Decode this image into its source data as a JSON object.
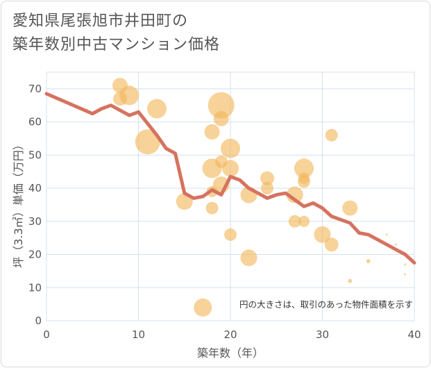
{
  "chart_data": {
    "type": "scatter",
    "title_lines": [
      "愛知県尾張旭市井田町の",
      "築年数別中古マンション価格"
    ],
    "xlabel": "築年数（年）",
    "ylabel": "坪（3.3㎡）単価（万円）",
    "xlim": [
      0,
      40
    ],
    "ylim": [
      0,
      75
    ],
    "xticks": [
      0,
      10,
      20,
      30,
      40
    ],
    "yticks": [
      0,
      10,
      20,
      30,
      40,
      50,
      60,
      70
    ],
    "grid": true,
    "annotation": "円の大きさは、取引のあった物件面積を示す",
    "colors": {
      "bubble": "#f2b75b",
      "line": "#d5735f",
      "grid": "#d4e1ec"
    },
    "series": [
      {
        "type": "bubble",
        "points": [
          {
            "x": 8,
            "y": 71,
            "size": 11
          },
          {
            "x": 8,
            "y": 67,
            "size": 10
          },
          {
            "x": 9,
            "y": 68,
            "size": 14
          },
          {
            "x": 11,
            "y": 54,
            "size": 18
          },
          {
            "x": 12,
            "y": 64,
            "size": 14
          },
          {
            "x": 15,
            "y": 36,
            "size": 12
          },
          {
            "x": 17,
            "y": 4,
            "size": 13
          },
          {
            "x": 18,
            "y": 57,
            "size": 11
          },
          {
            "x": 18,
            "y": 46,
            "size": 14
          },
          {
            "x": 18,
            "y": 39,
            "size": 8
          },
          {
            "x": 18,
            "y": 34,
            "size": 9
          },
          {
            "x": 19,
            "y": 65,
            "size": 19
          },
          {
            "x": 19,
            "y": 61,
            "size": 11
          },
          {
            "x": 19,
            "y": 48,
            "size": 9
          },
          {
            "x": 19,
            "y": 41,
            "size": 12
          },
          {
            "x": 20,
            "y": 52,
            "size": 14
          },
          {
            "x": 20,
            "y": 46,
            "size": 12
          },
          {
            "x": 20,
            "y": 26,
            "size": 9
          },
          {
            "x": 22,
            "y": 38,
            "size": 12
          },
          {
            "x": 22,
            "y": 19,
            "size": 12
          },
          {
            "x": 24,
            "y": 43,
            "size": 10
          },
          {
            "x": 24,
            "y": 40,
            "size": 9
          },
          {
            "x": 27,
            "y": 38,
            "size": 12
          },
          {
            "x": 27,
            "y": 30,
            "size": 9
          },
          {
            "x": 28,
            "y": 46,
            "size": 14
          },
          {
            "x": 28,
            "y": 43,
            "size": 8
          },
          {
            "x": 28,
            "y": 42,
            "size": 9
          },
          {
            "x": 28,
            "y": 30,
            "size": 8
          },
          {
            "x": 30,
            "y": 26,
            "size": 12
          },
          {
            "x": 31,
            "y": 56,
            "size": 9
          },
          {
            "x": 31,
            "y": 23,
            "size": 10
          },
          {
            "x": 33,
            "y": 34,
            "size": 11
          },
          {
            "x": 33,
            "y": 12,
            "size": 3
          },
          {
            "x": 35,
            "y": 18,
            "size": 3
          },
          {
            "x": 37,
            "y": 26,
            "size": 1.5
          },
          {
            "x": 38,
            "y": 23,
            "size": 1.5
          },
          {
            "x": 39,
            "y": 14,
            "size": 1.5
          },
          {
            "x": 39,
            "y": 17,
            "size": 1.5
          }
        ]
      },
      {
        "type": "line",
        "points": [
          [
            0,
            68.5
          ],
          [
            5,
            62.5
          ],
          [
            6,
            64
          ],
          [
            7,
            65
          ],
          [
            9,
            62
          ],
          [
            10,
            63
          ],
          [
            12,
            56
          ],
          [
            13,
            52
          ],
          [
            14,
            50.5
          ],
          [
            15,
            38.5
          ],
          [
            16,
            37
          ],
          [
            17,
            37.5
          ],
          [
            18,
            39.5
          ],
          [
            19,
            38
          ],
          [
            20,
            43.5
          ],
          [
            21,
            42.5
          ],
          [
            22,
            40
          ],
          [
            23,
            38.5
          ],
          [
            24,
            37
          ],
          [
            25,
            38
          ],
          [
            26,
            38.5
          ],
          [
            27,
            36.5
          ],
          [
            28,
            34.5
          ],
          [
            29,
            35.5
          ],
          [
            30,
            34
          ],
          [
            31,
            31.5
          ],
          [
            32,
            30.5
          ],
          [
            33,
            29.5
          ],
          [
            34,
            26.5
          ],
          [
            35,
            26
          ],
          [
            36,
            24.5
          ],
          [
            37,
            23
          ],
          [
            38,
            21.5
          ],
          [
            39,
            20
          ],
          [
            40,
            17.5
          ]
        ]
      }
    ]
  }
}
